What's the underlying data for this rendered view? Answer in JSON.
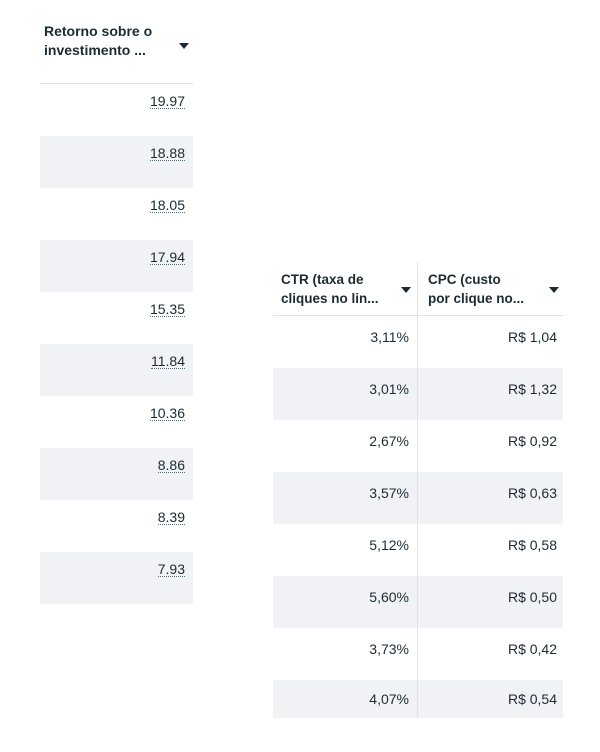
{
  "roas_table": {
    "header": {
      "line1": "Retorno sobre o",
      "line2": "investimento ...",
      "sort_icon": "caret-down-icon"
    },
    "rows": [
      "19.97",
      "18.88",
      "18.05",
      "17.94",
      "15.35",
      "11.84",
      "10.36",
      "8.86",
      "8.39",
      "7.93"
    ]
  },
  "metrics_table": {
    "headers": [
      {
        "line1": "CTR (taxa de",
        "line2": "cliques no lin...",
        "sort_icon": "caret-down-icon"
      },
      {
        "line1": "CPC (custo",
        "line2": "por clique no...",
        "sort_icon": "caret-down-icon"
      }
    ],
    "rows": [
      {
        "ctr": "3,11%",
        "cpc": "R$ 1,04"
      },
      {
        "ctr": "3,01%",
        "cpc": "R$ 1,32"
      },
      {
        "ctr": "2,67%",
        "cpc": "R$ 0,92"
      },
      {
        "ctr": "3,57%",
        "cpc": "R$ 0,63"
      },
      {
        "ctr": "5,12%",
        "cpc": "R$ 0,58"
      },
      {
        "ctr": "5,60%",
        "cpc": "R$ 0,50"
      },
      {
        "ctr": "3,73%",
        "cpc": "R$ 0,42"
      },
      {
        "ctr": "4,07%",
        "cpc": "R$ 0,54"
      }
    ]
  }
}
